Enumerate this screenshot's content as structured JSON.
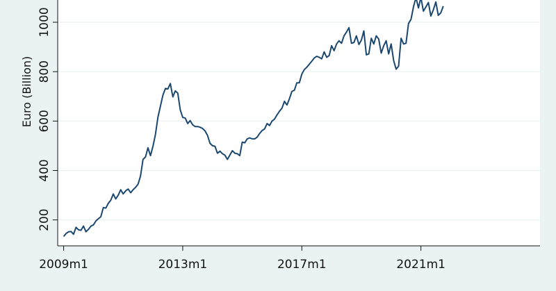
{
  "chart_data": {
    "type": "line",
    "title": "",
    "xlabel": "",
    "ylabel": "Euro (Billion)",
    "x_tick_labels": [
      "2009m1",
      "2013m1",
      "2017m1",
      "2021m1"
    ],
    "x_tick_positions": [
      2009.0,
      2013.0,
      2017.0,
      2021.0
    ],
    "y_ticks": [
      200,
      400,
      600,
      800,
      1000
    ],
    "xlim": [
      2008.8,
      2025.0
    ],
    "ylim": [
      95,
      1090
    ],
    "grid": "horizontal",
    "legend": "none",
    "colors": {
      "line": "#1a476f",
      "plot_bg": "#ffffff",
      "page_bg": "#eaf2f3",
      "grid": "#eaf2f3",
      "axis": "#111111"
    },
    "series": [
      {
        "x": [
          2009.0,
          2009.083,
          2009.167,
          2009.25,
          2009.333,
          2009.417,
          2009.5,
          2009.583,
          2009.667,
          2009.75,
          2009.833,
          2009.917,
          2010.0,
          2010.083,
          2010.167,
          2010.25,
          2010.333,
          2010.417,
          2010.5,
          2010.583,
          2010.667,
          2010.75,
          2010.833,
          2010.917,
          2011.0,
          2011.083,
          2011.167,
          2011.25,
          2011.333,
          2011.417,
          2011.5,
          2011.583,
          2011.667,
          2011.75,
          2011.833,
          2011.917,
          2012.0,
          2012.083,
          2012.167,
          2012.25,
          2012.333,
          2012.417,
          2012.5,
          2012.583,
          2012.667,
          2012.75,
          2012.833,
          2012.917,
          2013.0,
          2013.083,
          2013.167,
          2013.25,
          2013.333,
          2013.417,
          2013.5,
          2013.583,
          2013.667,
          2013.75,
          2013.833,
          2013.917,
          2014.0,
          2014.083,
          2014.167,
          2014.25,
          2014.333,
          2014.417,
          2014.5,
          2014.583,
          2014.667,
          2014.75,
          2014.833,
          2014.917,
          2015.0,
          2015.083,
          2015.167,
          2015.25,
          2015.333,
          2015.417,
          2015.5,
          2015.583,
          2015.667,
          2015.75,
          2015.833,
          2015.917,
          2016.0,
          2016.083,
          2016.167,
          2016.25,
          2016.333,
          2016.417,
          2016.5,
          2016.583,
          2016.667,
          2016.75,
          2016.833,
          2016.917,
          2017.0,
          2017.083,
          2017.167,
          2017.25,
          2017.333,
          2017.417,
          2017.5,
          2017.583,
          2017.667,
          2017.75,
          2017.833,
          2017.917,
          2018.0,
          2018.083,
          2018.167,
          2018.25,
          2018.333,
          2018.417,
          2018.5,
          2018.583,
          2018.667,
          2018.75,
          2018.833,
          2018.917,
          2019.0,
          2019.083,
          2019.167,
          2019.25,
          2019.333,
          2019.417,
          2019.5,
          2019.583,
          2019.667,
          2019.75,
          2019.833,
          2019.917,
          2020.0,
          2020.083,
          2020.167,
          2020.25,
          2020.333,
          2020.417,
          2020.5,
          2020.583,
          2020.667,
          2020.75,
          2020.833,
          2020.917,
          2021.0,
          2021.083,
          2021.167,
          2021.25,
          2021.333,
          2021.417,
          2021.5,
          2021.583,
          2021.667,
          2021.75
        ],
        "y": [
          133,
          145,
          152,
          153,
          142,
          170,
          160,
          158,
          175,
          152,
          162,
          175,
          180,
          196,
          205,
          213,
          250,
          248,
          267,
          280,
          305,
          285,
          300,
          322,
          305,
          318,
          325,
          310,
          322,
          332,
          345,
          378,
          445,
          455,
          492,
          460,
          498,
          545,
          615,
          660,
          705,
          732,
          730,
          752,
          698,
          722,
          713,
          645,
          615,
          612,
          590,
          602,
          585,
          578,
          578,
          575,
          570,
          560,
          542,
          510,
          500,
          498,
          470,
          478,
          468,
          462,
          445,
          462,
          480,
          470,
          468,
          460,
          515,
          512,
          528,
          532,
          528,
          528,
          535,
          550,
          562,
          568,
          590,
          582,
          600,
          608,
          625,
          640,
          652,
          680,
          665,
          690,
          720,
          725,
          755,
          755,
          790,
          808,
          818,
          830,
          842,
          855,
          862,
          858,
          852,
          880,
          858,
          865,
          905,
          885,
          912,
          925,
          915,
          945,
          960,
          978,
          915,
          918,
          945,
          910,
          928,
          965,
          868,
          872,
          935,
          912,
          945,
          932,
          875,
          905,
          925,
          872,
          912,
          845,
          810,
          822,
          935,
          912,
          915,
          995,
          1012,
          1062,
          1100,
          1058,
          1100,
          1045,
          1062,
          1080,
          1025,
          1050,
          1082,
          1028,
          1038,
          1065
        ]
      }
    ]
  }
}
